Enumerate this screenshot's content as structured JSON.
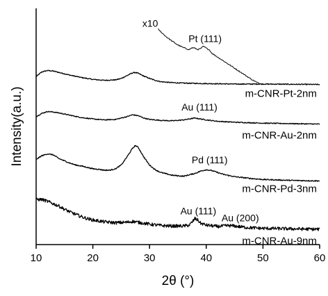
{
  "chart_data": {
    "type": "line",
    "title": "",
    "xlabel": "2θ (°)",
    "ylabel": "Intensity(a.u.)",
    "xlim": [
      10,
      60
    ],
    "x_ticks": [
      10,
      20,
      30,
      40,
      50,
      60
    ],
    "y_units": "arbitrary (curves vertically offset)",
    "grid": false,
    "series": [
      {
        "name": "m-CNR-Pt-2nm",
        "offset": 3.1,
        "noise": 0.01,
        "points": [
          [
            10,
            0.18
          ],
          [
            11,
            0.28
          ],
          [
            12,
            0.31
          ],
          [
            13,
            0.3
          ],
          [
            14,
            0.27
          ],
          [
            16,
            0.21
          ],
          [
            18,
            0.16
          ],
          [
            20,
            0.12
          ],
          [
            22,
            0.1
          ],
          [
            24,
            0.11
          ],
          [
            25,
            0.14
          ],
          [
            26,
            0.2
          ],
          [
            27,
            0.26
          ],
          [
            27.5,
            0.27
          ],
          [
            28,
            0.25
          ],
          [
            29,
            0.19
          ],
          [
            30,
            0.14
          ],
          [
            31,
            0.1
          ],
          [
            32,
            0.07
          ],
          [
            34,
            0.05
          ],
          [
            36,
            0.04
          ],
          [
            38,
            0.035
          ],
          [
            40,
            0.03
          ],
          [
            45,
            0.02
          ],
          [
            50,
            0.02
          ],
          [
            55,
            0.015
          ],
          [
            60,
            0.01
          ]
        ]
      },
      {
        "name": "x10",
        "offset": 3.1,
        "noise": 0.012,
        "points": [
          [
            31.5,
            1.2
          ],
          [
            32,
            1.14
          ],
          [
            33,
            1.03
          ],
          [
            34,
            0.94
          ],
          [
            35,
            0.86
          ],
          [
            36,
            0.8
          ],
          [
            36.5,
            0.78
          ],
          [
            37,
            0.76
          ],
          [
            37.5,
            0.8
          ],
          [
            38,
            0.79
          ],
          [
            38.5,
            0.76
          ],
          [
            39,
            0.78
          ],
          [
            39.5,
            0.83
          ],
          [
            40,
            0.79
          ],
          [
            40.5,
            0.76
          ],
          [
            41,
            0.68
          ],
          [
            42,
            0.6
          ],
          [
            43,
            0.52
          ],
          [
            44,
            0.44
          ],
          [
            45,
            0.36
          ],
          [
            46,
            0.28
          ],
          [
            47,
            0.2
          ],
          [
            48,
            0.12
          ],
          [
            49,
            0.05
          ],
          [
            49.5,
            0.03
          ]
        ]
      },
      {
        "name": "m-CNR-Au-2nm",
        "offset": 2.3,
        "noise": 0.01,
        "points": [
          [
            10,
            0.12
          ],
          [
            11,
            0.19
          ],
          [
            12,
            0.23
          ],
          [
            13,
            0.22
          ],
          [
            14,
            0.2
          ],
          [
            16,
            0.15
          ],
          [
            18,
            0.1
          ],
          [
            20,
            0.07
          ],
          [
            22,
            0.05
          ],
          [
            24,
            0.06
          ],
          [
            26,
            0.12
          ],
          [
            27,
            0.16
          ],
          [
            28,
            0.14
          ],
          [
            29,
            0.09
          ],
          [
            30,
            0.06
          ],
          [
            32,
            0.04
          ],
          [
            34,
            0.03
          ],
          [
            36,
            0.05
          ],
          [
            38,
            0.09
          ],
          [
            39,
            0.07
          ],
          [
            40,
            0.05
          ],
          [
            42,
            0.02
          ],
          [
            45,
            0.0
          ],
          [
            50,
            -0.02
          ],
          [
            55,
            -0.03
          ],
          [
            60,
            -0.04
          ]
        ]
      },
      {
        "name": "m-CNR-Pd-3nm",
        "offset": 1.1,
        "noise": 0.012,
        "points": [
          [
            10,
            0.4
          ],
          [
            11,
            0.48
          ],
          [
            12,
            0.52
          ],
          [
            13,
            0.5
          ],
          [
            14,
            0.42
          ],
          [
            15,
            0.37
          ],
          [
            16,
            0.32
          ],
          [
            17,
            0.28
          ],
          [
            18,
            0.26
          ],
          [
            19,
            0.23
          ],
          [
            20,
            0.2
          ],
          [
            21,
            0.19
          ],
          [
            22,
            0.17
          ],
          [
            23,
            0.17
          ],
          [
            24,
            0.2
          ],
          [
            25,
            0.28
          ],
          [
            26,
            0.45
          ],
          [
            27,
            0.64
          ],
          [
            27.5,
            0.7
          ],
          [
            28,
            0.66
          ],
          [
            29,
            0.45
          ],
          [
            30,
            0.28
          ],
          [
            31,
            0.18
          ],
          [
            32,
            0.12
          ],
          [
            34,
            0.06
          ],
          [
            36,
            0.04
          ],
          [
            38,
            0.1
          ],
          [
            39,
            0.15
          ],
          [
            40,
            0.18
          ],
          [
            41,
            0.16
          ],
          [
            42,
            0.12
          ],
          [
            43,
            0.08
          ],
          [
            45,
            0.03
          ],
          [
            48,
            -0.01
          ],
          [
            50,
            -0.03
          ],
          [
            55,
            -0.05
          ],
          [
            60,
            -0.06
          ]
        ]
      },
      {
        "name": "m-CNR-Au-9nm",
        "offset": 0.0,
        "noise": 0.035,
        "points": [
          [
            10,
            0.64
          ],
          [
            11,
            0.64
          ],
          [
            12,
            0.6
          ],
          [
            13,
            0.55
          ],
          [
            14,
            0.5
          ],
          [
            15,
            0.43
          ],
          [
            16,
            0.37
          ],
          [
            17,
            0.32
          ],
          [
            18,
            0.27
          ],
          [
            19,
            0.23
          ],
          [
            20,
            0.2
          ],
          [
            22,
            0.16
          ],
          [
            24,
            0.14
          ],
          [
            26,
            0.15
          ],
          [
            27,
            0.17
          ],
          [
            28,
            0.15
          ],
          [
            30,
            0.11
          ],
          [
            32,
            0.08
          ],
          [
            34,
            0.07
          ],
          [
            36,
            0.07
          ],
          [
            37,
            0.09
          ],
          [
            37.5,
            0.15
          ],
          [
            38,
            0.23
          ],
          [
            38.5,
            0.2
          ],
          [
            39,
            0.13
          ],
          [
            40,
            0.09
          ],
          [
            42,
            0.06
          ],
          [
            44,
            0.08
          ],
          [
            45,
            0.07
          ],
          [
            47,
            0.04
          ],
          [
            50,
            0.02
          ],
          [
            55,
            0.01
          ],
          [
            60,
            0.0
          ]
        ]
      }
    ],
    "annotations": [
      {
        "text": "x10",
        "x": 31.5,
        "y": 4.35
      },
      {
        "text": "Pt (111)",
        "x": 39.8,
        "y": 4.02
      },
      {
        "text": "m-CNR-Pt-2nm",
        "x": 59.5,
        "y": 2.84
      },
      {
        "text": "Au (111)",
        "x": 38.8,
        "y": 2.55
      },
      {
        "text": "m-CNR-Au-2nm",
        "x": 59.5,
        "y": 1.95
      },
      {
        "text": "Pd (111)",
        "x": 40.6,
        "y": 1.42
      },
      {
        "text": "m-CNR-Pd-3nm",
        "x": 59.5,
        "y": 0.8
      },
      {
        "text": "Au (111)",
        "x": 38.6,
        "y": 0.32
      },
      {
        "text": "Au (200)",
        "x": 46.0,
        "y": 0.17
      },
      {
        "text": "m-CNR-Au-9nm",
        "x": 59.5,
        "y": -0.32
      }
    ]
  }
}
